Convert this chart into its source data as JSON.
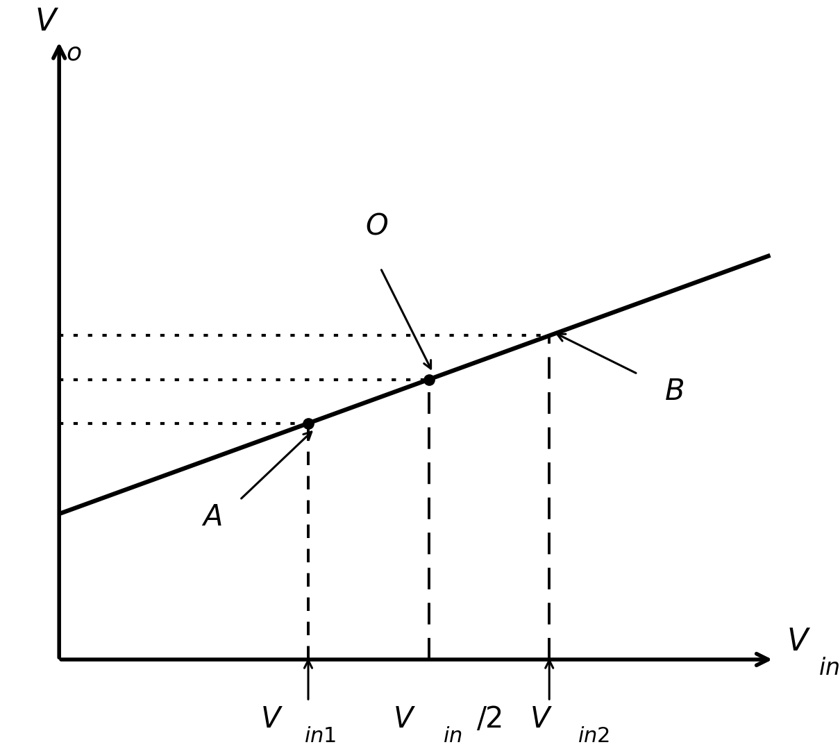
{
  "figsize": [
    12.1,
    10.76
  ],
  "dpi": 100,
  "bg_color": "#ffffff",
  "line_color": "#000000",
  "line_width": 4.0,
  "dashed_lw": 2.8,
  "dotted_lw": 3.0,
  "xlim": [
    0,
    10
  ],
  "ylim": [
    0,
    10
  ],
  "ax_x0": 0.7,
  "ax_y0": 0.7,
  "ax_x1": 9.6,
  "ax_y1": 9.6,
  "slope": 0.42,
  "intercept": 2.5,
  "vin1": 3.8,
  "vin_half": 5.3,
  "vin2": 6.8,
  "ylabel_text": "$V_o$",
  "xlabel_subscript": "o",
  "xlabel_text": "$V_{in}$",
  "label_vinl": "$V_{in1}$",
  "label_vinhalf": "$V_{in}/2$",
  "label_vin2": "$V_{in2}$",
  "label_A": "$A$",
  "label_B": "$B$",
  "label_O": "$O$",
  "font_size_axis": 32,
  "font_size_label": 30,
  "font_size_point": 30
}
